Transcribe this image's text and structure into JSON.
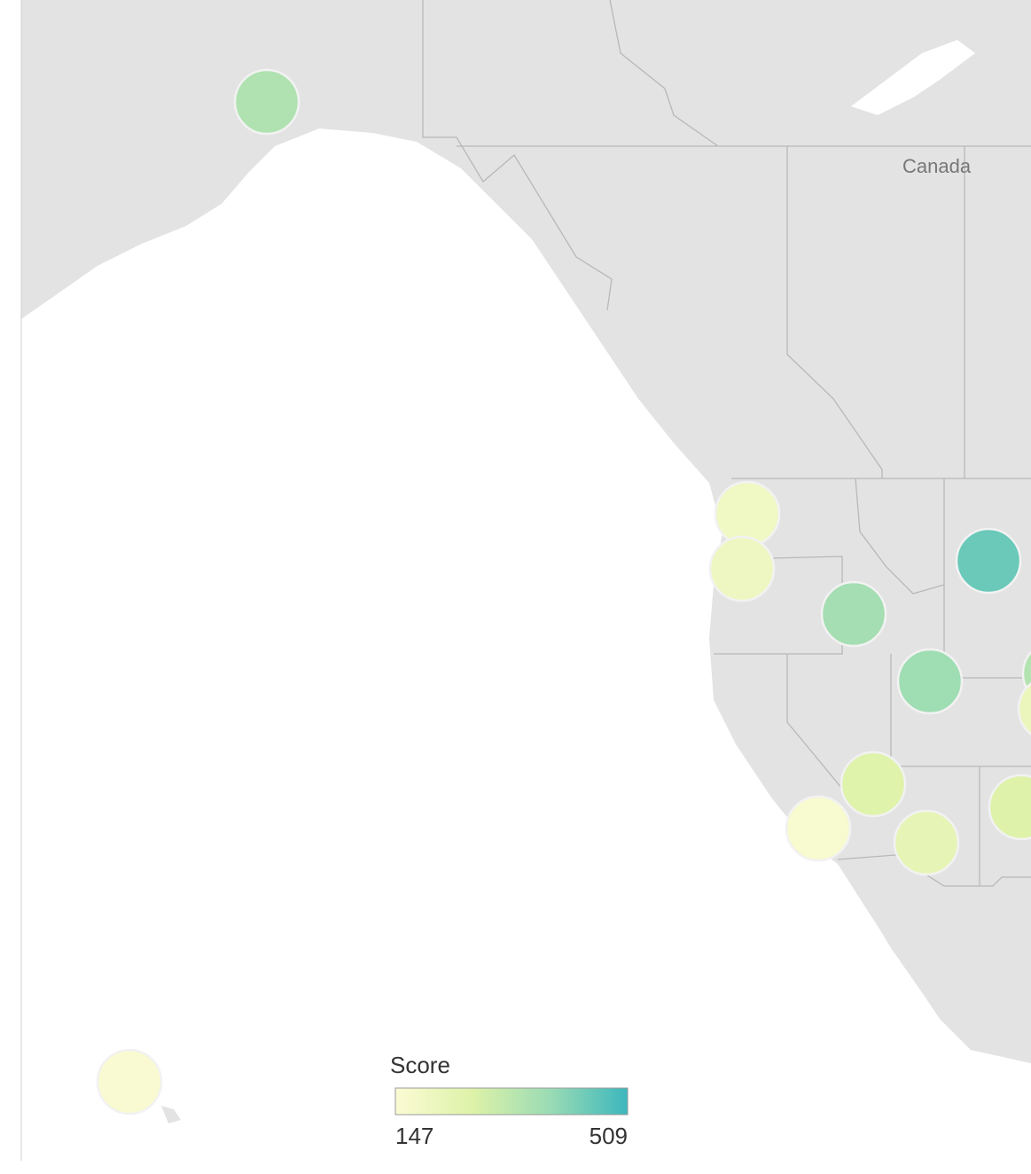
{
  "map": {
    "type": "symbol-map",
    "label": "Canada",
    "legend": {
      "title": "Score",
      "min": 147,
      "max": 509,
      "colors": [
        "#fbfbd4",
        "#ddf2a8",
        "#9adbb4",
        "#3cb7bd"
      ]
    },
    "points": [
      350,
      190,
      200,
      370,
      450,
      380,
      260,
      160,
      230,
      155,
      265,
      345,
      210
    ]
  }
}
